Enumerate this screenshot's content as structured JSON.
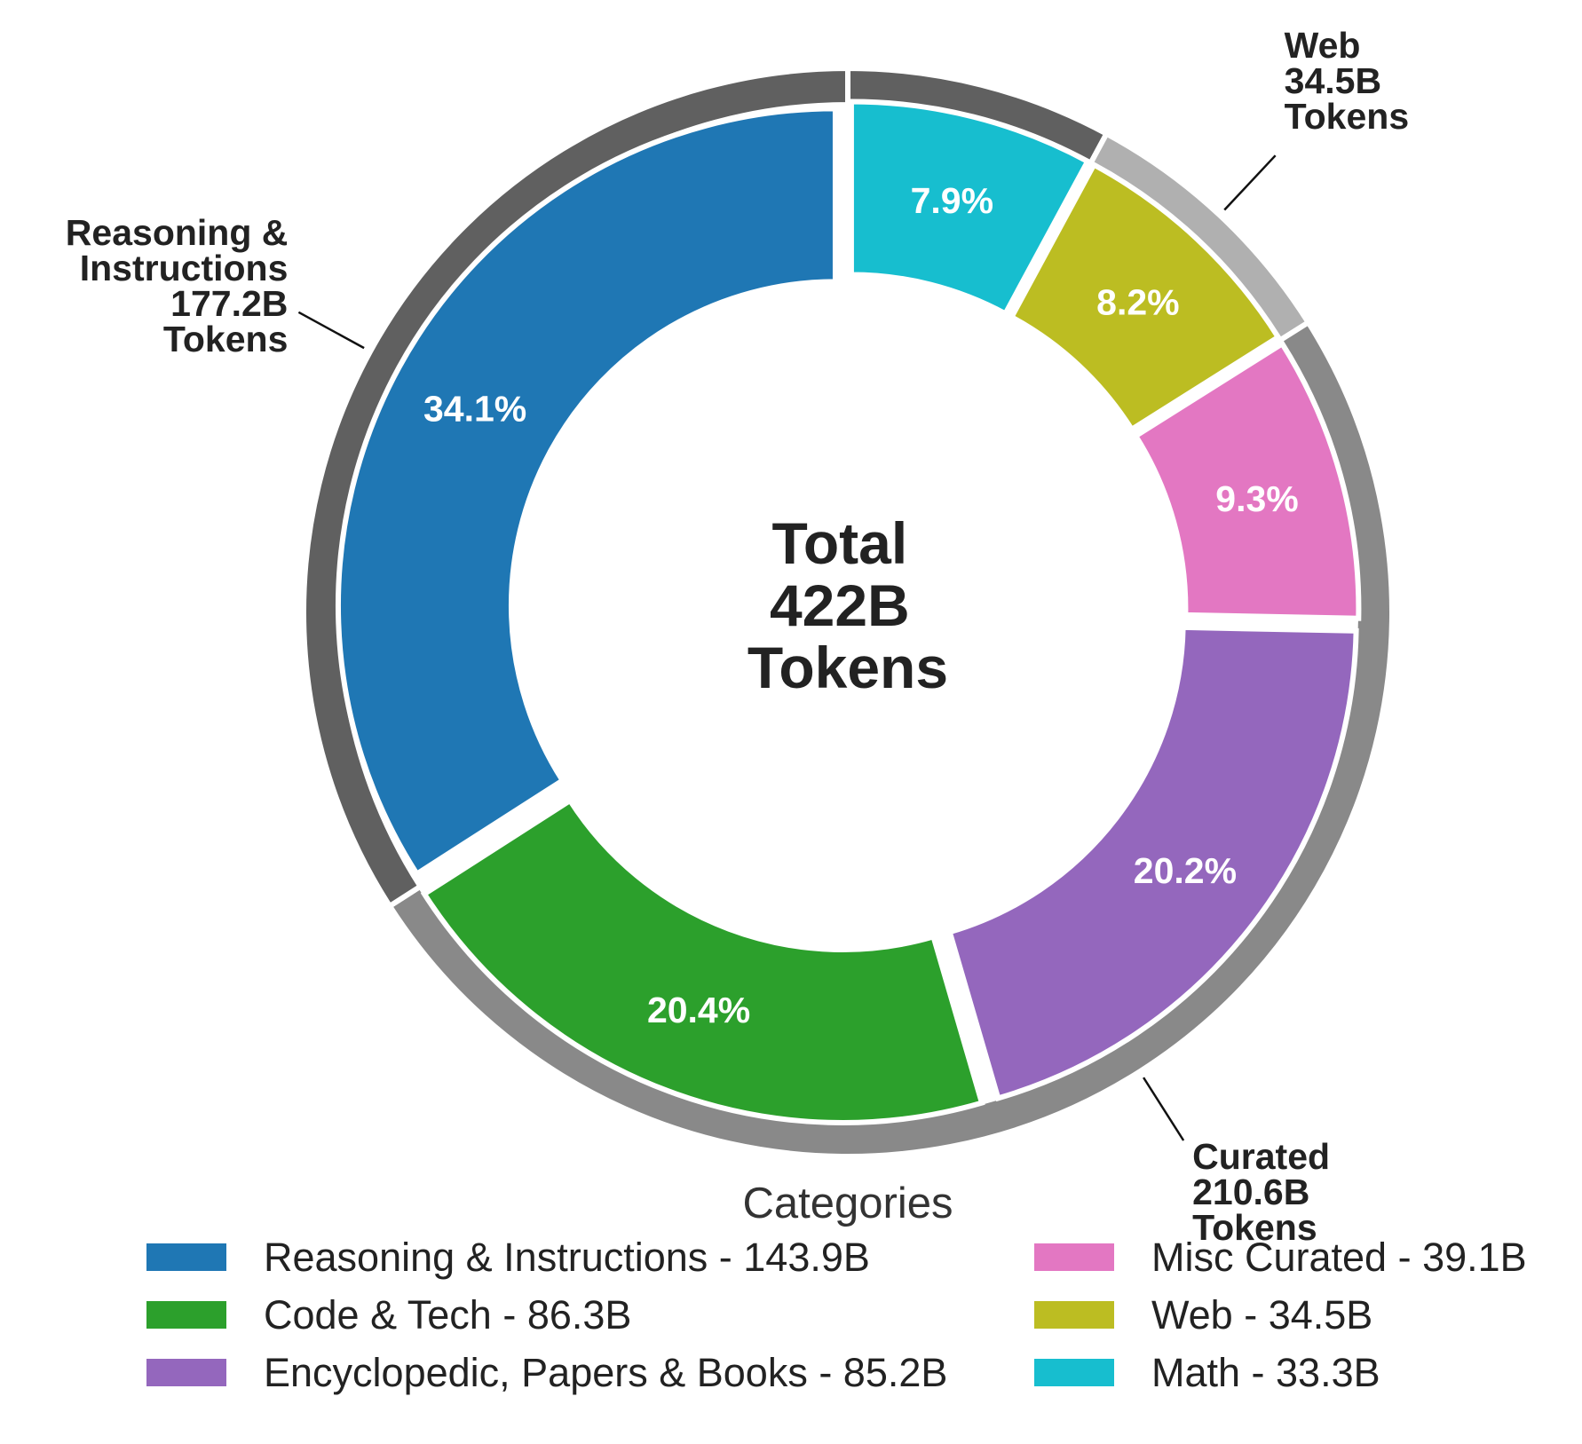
{
  "chart_data": {
    "type": "pie",
    "center_label": [
      "Total",
      "422B",
      "Tokens"
    ],
    "inner": {
      "slices": [
        {
          "name": "Math",
          "value": 33.3,
          "pct_label": "7.9%",
          "color": "#17becf"
        },
        {
          "name": "Web",
          "value": 34.5,
          "pct_label": "8.2%",
          "color": "#bcbd22"
        },
        {
          "name": "Misc Curated",
          "value": 39.1,
          "pct_label": "9.3%",
          "color": "#e377c2"
        },
        {
          "name": "Encyclopedic, Papers & Books",
          "value": 85.2,
          "pct_label": "20.2%",
          "color": "#9467bd"
        },
        {
          "name": "Code & Tech",
          "value": 86.3,
          "pct_label": "20.4%",
          "color": "#2ca02c"
        },
        {
          "name": "Reasoning & Instructions",
          "value": 143.9,
          "pct_label": "34.1%",
          "color": "#1f77b4"
        }
      ]
    },
    "outer": {
      "groups": [
        {
          "name": "Math",
          "value": 33.3,
          "color": "#606060",
          "label": []
        },
        {
          "name": "Web",
          "value": 34.5,
          "color": "#b0b0b0",
          "label": [
            "Web",
            "34.5B",
            "Tokens"
          ]
        },
        {
          "name": "Curated",
          "value": 210.6,
          "color": "#898989",
          "label": [
            "Curated",
            "210.6B",
            "Tokens"
          ]
        },
        {
          "name": "Reasoning & Instructions",
          "value": 143.9,
          "color": "#606060",
          "label": [
            "Reasoning &",
            "Instructions",
            "177.2B",
            "Tokens"
          ]
        }
      ]
    },
    "legend": {
      "title": "Categories",
      "placement": "bottom",
      "items": [
        {
          "label": "Reasoning & Instructions - 143.9B",
          "color": "#1f77b4"
        },
        {
          "label": "Code & Tech - 86.3B",
          "color": "#2ca02c"
        },
        {
          "label": "Encyclopedic, Papers & Books - 85.2B",
          "color": "#9467bd"
        },
        {
          "label": "Misc Curated - 39.1B",
          "color": "#e377c2"
        },
        {
          "label": "Web - 34.5B",
          "color": "#bcbd22"
        },
        {
          "label": "Math - 33.3B",
          "color": "#17becf"
        }
      ]
    }
  }
}
